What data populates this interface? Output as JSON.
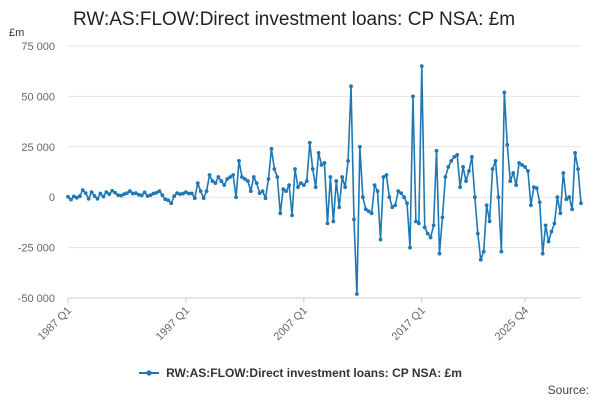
{
  "header": {
    "title": "RW:AS:FLOW:Direct investment loans: CP NSA: £m"
  },
  "footer": {
    "source": "Source:"
  },
  "chart_data": {
    "type": "line",
    "title": "RW:AS:FLOW:Direct investment loans: CP NSA: £m",
    "ylabel": "£m",
    "ylim": [
      -50000,
      75000
    ],
    "y_ticks": [
      "-50 000",
      "-25 000",
      "0",
      "25 000",
      "50 000",
      "75 000"
    ],
    "x_ticks": [
      "1987 Q1",
      "1997 Q1",
      "2007 Q1",
      "2017 Q1",
      "2025 Q4"
    ],
    "grid": true,
    "legend_position": "bottom",
    "series": [
      {
        "name": "RW:AS:FLOW:Direct investment loans: CP NSA: £m",
        "color": "#1f77b4",
        "x_start": "1987 Q1",
        "frequency": "quarterly",
        "values": [
          200,
          -1200,
          400,
          -300,
          500,
          3500,
          2000,
          -800,
          2500,
          600,
          -800,
          1800,
          300,
          2500,
          1500,
          3200,
          2200,
          1000,
          800,
          1500,
          2000,
          3000,
          1800,
          2000,
          1200,
          900,
          2400,
          600,
          1000,
          1800,
          2200,
          3000,
          1000,
          -1000,
          -1500,
          -3000,
          500,
          2000,
          1500,
          1800,
          2500,
          1800,
          1900,
          -500,
          7000,
          3000,
          -500,
          3000,
          11000,
          8000,
          7000,
          10000,
          8000,
          6000,
          9000,
          10000,
          11000,
          0,
          18000,
          10000,
          9000,
          8000,
          3000,
          10000,
          7000,
          2000,
          3000,
          -500,
          9000,
          24000,
          14000,
          10000,
          -8000,
          4000,
          3000,
          6000,
          -9000,
          14000,
          5000,
          7000,
          6000,
          8000,
          27000,
          14000,
          5000,
          22000,
          16000,
          17000,
          -13000,
          10000,
          -12000,
          8000,
          -5000,
          10000,
          5000,
          18000,
          55000,
          -11000,
          -48000,
          25000,
          0,
          -6000,
          -7000,
          -8000,
          6000,
          3000,
          -21000,
          10000,
          11000,
          0,
          -5000,
          -4000,
          3000,
          2000,
          0,
          -3000,
          -25000,
          50000,
          -12000,
          -13000,
          65000,
          -15000,
          -18000,
          -20000,
          -14000,
          23000,
          -28000,
          -10000,
          10000,
          15000,
          18000,
          20000,
          21000,
          5000,
          15000,
          8000,
          13000,
          20000,
          0,
          -18000,
          -31000,
          -27000,
          -4000,
          -12000,
          14000,
          18000,
          0,
          -27000,
          52000,
          26000,
          8000,
          12000,
          6000,
          17000,
          16000,
          15000,
          13000,
          -4000,
          5000,
          4500,
          -2500,
          -28000,
          -14000,
          -22000,
          -17000,
          -13000,
          0,
          -8000,
          12000,
          -1000,
          0,
          -6000,
          22000,
          14000,
          -3000
        ]
      }
    ]
  }
}
